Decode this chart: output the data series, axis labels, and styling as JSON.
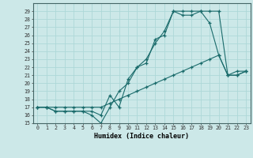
{
  "title": "",
  "xlabel": "Humidex (Indice chaleur)",
  "bg_color": "#cce8e8",
  "grid_color": "#b0d8d8",
  "line_color": "#1a6b6b",
  "xlim": [
    -0.5,
    23.5
  ],
  "ylim": [
    15,
    30
  ],
  "yticks": [
    15,
    16,
    17,
    18,
    19,
    20,
    21,
    22,
    23,
    24,
    25,
    26,
    27,
    28,
    29
  ],
  "xticks": [
    0,
    1,
    2,
    3,
    4,
    5,
    6,
    7,
    8,
    9,
    10,
    11,
    12,
    13,
    14,
    15,
    16,
    17,
    18,
    19,
    20,
    21,
    22,
    23
  ],
  "series1_x": [
    0,
    1,
    2,
    3,
    4,
    5,
    6,
    7,
    8,
    9,
    10,
    11,
    12,
    13,
    14,
    15,
    16,
    17,
    18,
    19,
    20,
    21,
    22,
    23
  ],
  "series1_y": [
    17,
    17,
    16.5,
    16.5,
    16.5,
    16.5,
    16,
    15,
    17,
    19,
    20,
    22,
    22.5,
    25.5,
    26,
    29,
    28.5,
    28.5,
    29,
    27.5,
    23.5,
    21,
    21.5,
    21.5
  ],
  "series2_x": [
    0,
    1,
    2,
    3,
    4,
    5,
    6,
    7,
    8,
    9,
    10,
    11,
    12,
    13,
    14,
    15,
    16,
    17,
    18,
    19,
    20,
    21,
    22,
    23
  ],
  "series2_y": [
    17,
    17,
    16.5,
    16.5,
    16.5,
    16.5,
    16.5,
    16,
    18.5,
    17,
    20.5,
    22,
    23,
    25,
    26.5,
    29,
    29,
    29,
    29,
    29,
    29,
    21,
    21,
    21.5
  ],
  "series3_x": [
    0,
    1,
    2,
    3,
    4,
    5,
    6,
    7,
    8,
    9,
    10,
    11,
    12,
    13,
    14,
    15,
    16,
    17,
    18,
    19,
    20,
    21,
    22,
    23
  ],
  "series3_y": [
    17,
    17,
    17,
    17,
    17,
    17,
    17,
    17,
    17.5,
    18,
    18.5,
    19,
    19.5,
    20,
    20.5,
    21,
    21.5,
    22,
    22.5,
    23,
    23.5,
    21,
    21,
    21.5
  ]
}
